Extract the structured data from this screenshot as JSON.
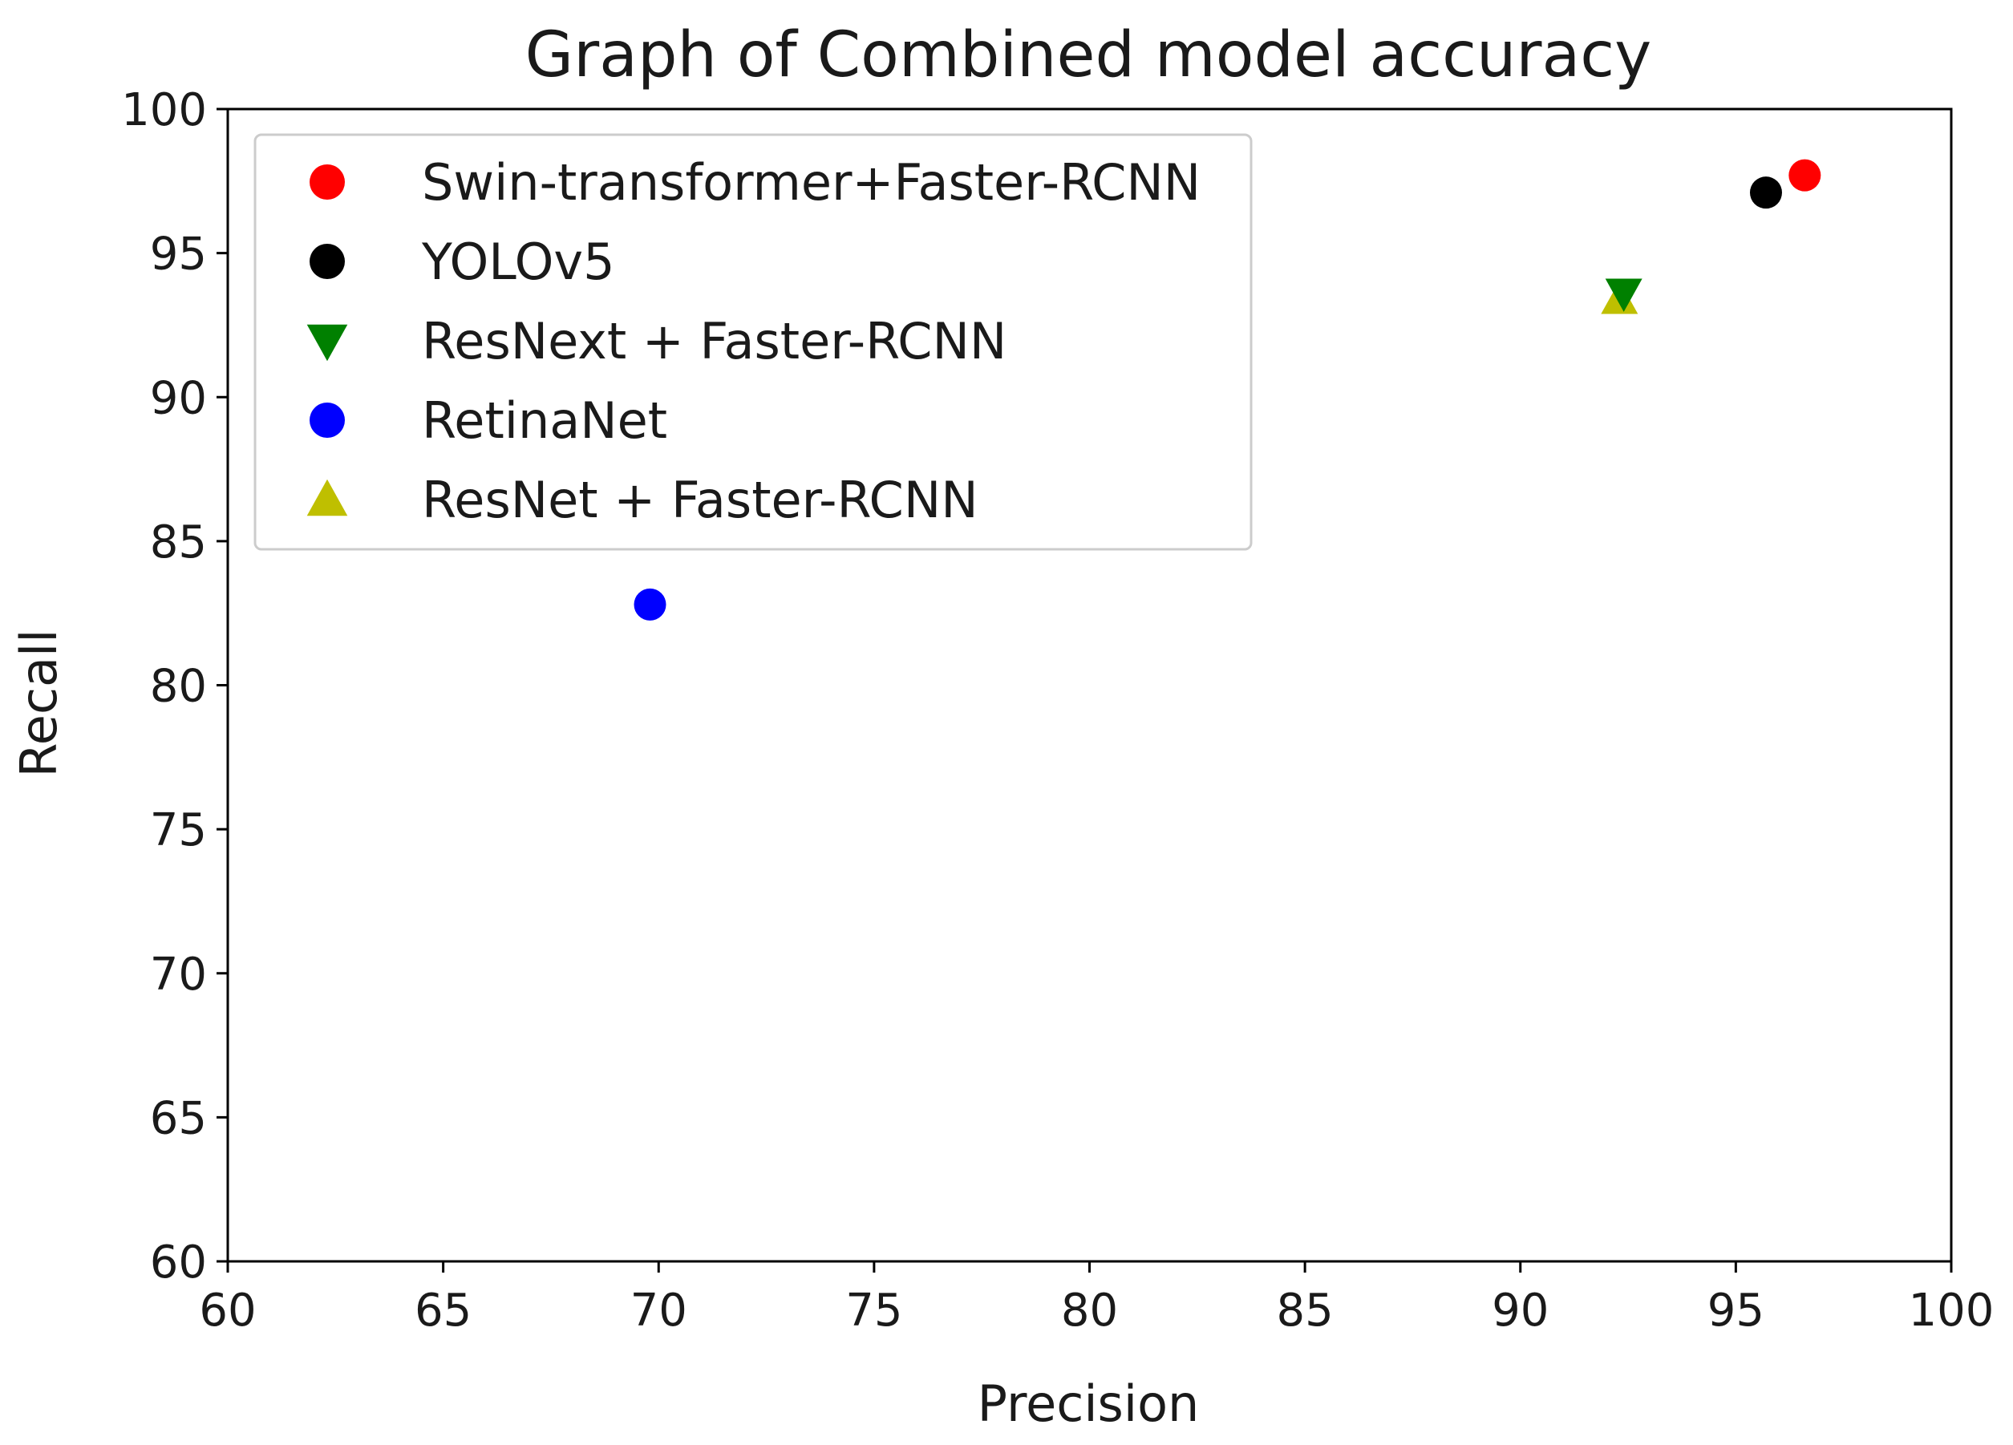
{
  "chart_data": {
    "type": "scatter",
    "title": "Graph of Combined model accuracy",
    "xlabel": "Precision",
    "ylabel": "Recall",
    "xlim": [
      60,
      100
    ],
    "ylim": [
      60,
      100
    ],
    "xticks": [
      60,
      65,
      70,
      75,
      80,
      85,
      90,
      95,
      100
    ],
    "yticks": [
      60,
      65,
      70,
      75,
      80,
      85,
      90,
      95,
      100
    ],
    "grid": false,
    "legend_position": "upper-left",
    "series": [
      {
        "name": "Swin-transformer+Faster-RCNN",
        "marker": "circle",
        "color": "#ff0000",
        "points": [
          {
            "x": 96.6,
            "y": 97.7
          }
        ]
      },
      {
        "name": "YOLOv5",
        "marker": "circle",
        "color": "#000000",
        "points": [
          {
            "x": 95.7,
            "y": 97.1
          }
        ]
      },
      {
        "name": "ResNext + Faster-RCNN",
        "marker": "triangle-down",
        "color": "#008000",
        "points": [
          {
            "x": 92.4,
            "y": 93.6
          }
        ]
      },
      {
        "name": "RetinaNet",
        "marker": "circle",
        "color": "#0000ff",
        "points": [
          {
            "x": 69.8,
            "y": 82.8
          }
        ]
      },
      {
        "name": "ResNet + Faster-RCNN",
        "marker": "triangle-up",
        "color": "#bfbf00",
        "points": [
          {
            "x": 92.3,
            "y": 93.4
          }
        ]
      }
    ]
  }
}
